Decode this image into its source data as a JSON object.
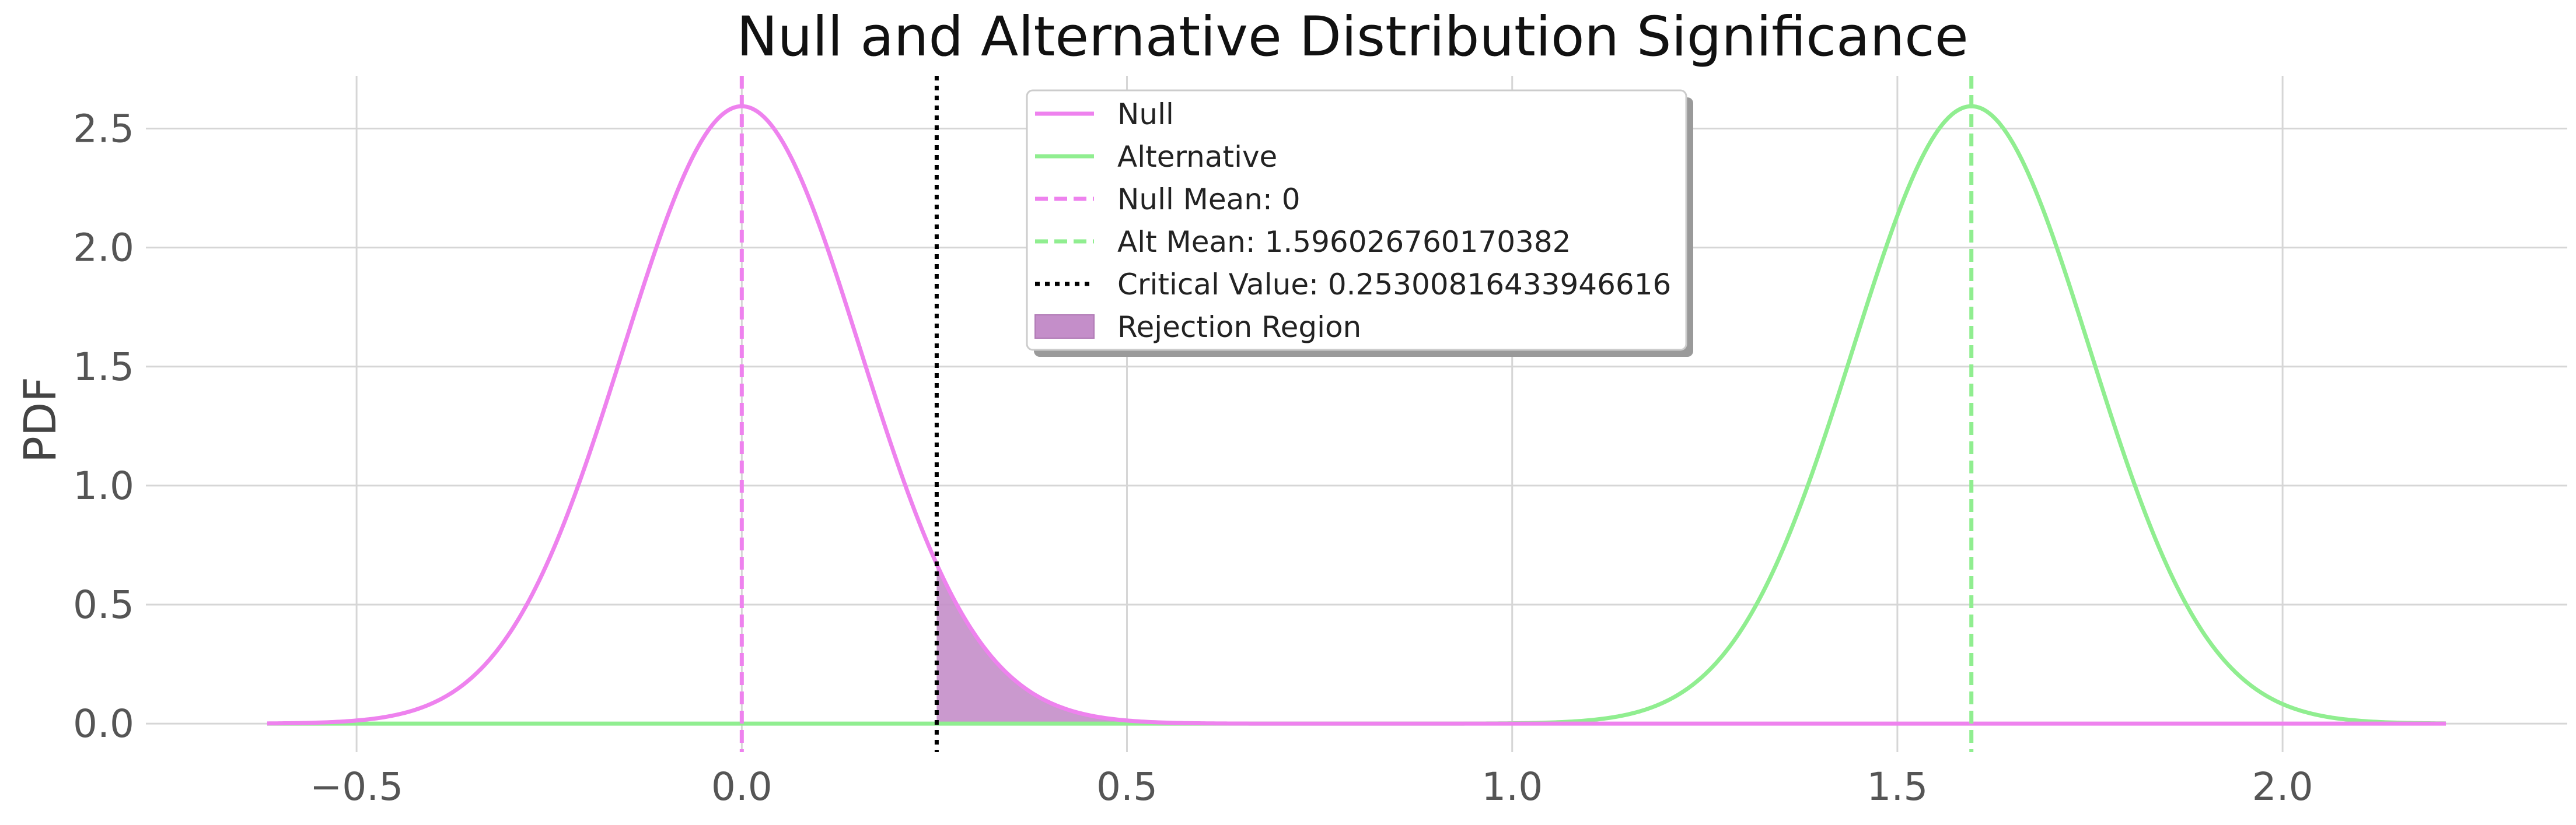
{
  "chart_data": {
    "type": "line",
    "title": "Null and Alternative Distribution Significance",
    "xlabel": "",
    "ylabel": "PDF",
    "xlim": [
      -0.7735,
      2.3695
    ],
    "ylim": [
      -0.1196,
      2.7218
    ],
    "x_ticks": [
      "−0.5",
      "0.0",
      "0.5",
      "1.0",
      "1.5",
      "2.0"
    ],
    "x_tick_values": [
      -0.5,
      0.0,
      0.5,
      1.0,
      1.5,
      2.0
    ],
    "y_ticks": [
      "0.0",
      "0.5",
      "1.0",
      "1.5",
      "2.0",
      "2.5"
    ],
    "y_tick_values": [
      0.0,
      0.5,
      1.0,
      1.5,
      2.0,
      2.5
    ],
    "grid": true,
    "legend_position": "upper-center",
    "x_range": [
      -0.616,
      2.212
    ],
    "series": [
      {
        "name": "Null",
        "kind": "normal-pdf",
        "mean": 0,
        "sd": 0.1538,
        "color": "#ee82ee"
      },
      {
        "name": "Alternative",
        "kind": "normal-pdf",
        "mean": 1.596026760170382,
        "sd": 0.1538,
        "color": "#90ee90"
      }
    ],
    "reference_lines": [
      {
        "name": "Null Mean: 0",
        "x": 0,
        "style": "dashed",
        "color": "#ee82ee"
      },
      {
        "name": "Alt Mean: 1.596026760170382",
        "x": 1.596026760170382,
        "style": "dashed",
        "color": "#90ee90"
      },
      {
        "name": "Critical Value: 0.25300816433946616",
        "x": 0.25300816433946616,
        "style": "dotted",
        "color": "#000000"
      }
    ],
    "shaded_region": {
      "name": "Rejection Region",
      "from": 0.25300816433946616,
      "under": "Null",
      "color": "#c48ec9"
    },
    "legend": [
      {
        "label": "Null",
        "style": "solid",
        "color": "#ee82ee"
      },
      {
        "label": "Alternative",
        "style": "solid",
        "color": "#90ee90"
      },
      {
        "label": "Null Mean: 0",
        "style": "dashed",
        "color": "#ee82ee"
      },
      {
        "label": "Alt Mean: 1.596026760170382",
        "style": "dashed",
        "color": "#90ee90"
      },
      {
        "label": "Critical Value: 0.25300816433946616",
        "style": "dotted",
        "color": "#000000"
      },
      {
        "label": "Rejection Region",
        "style": "patch",
        "color": "#c48ec9"
      }
    ]
  }
}
